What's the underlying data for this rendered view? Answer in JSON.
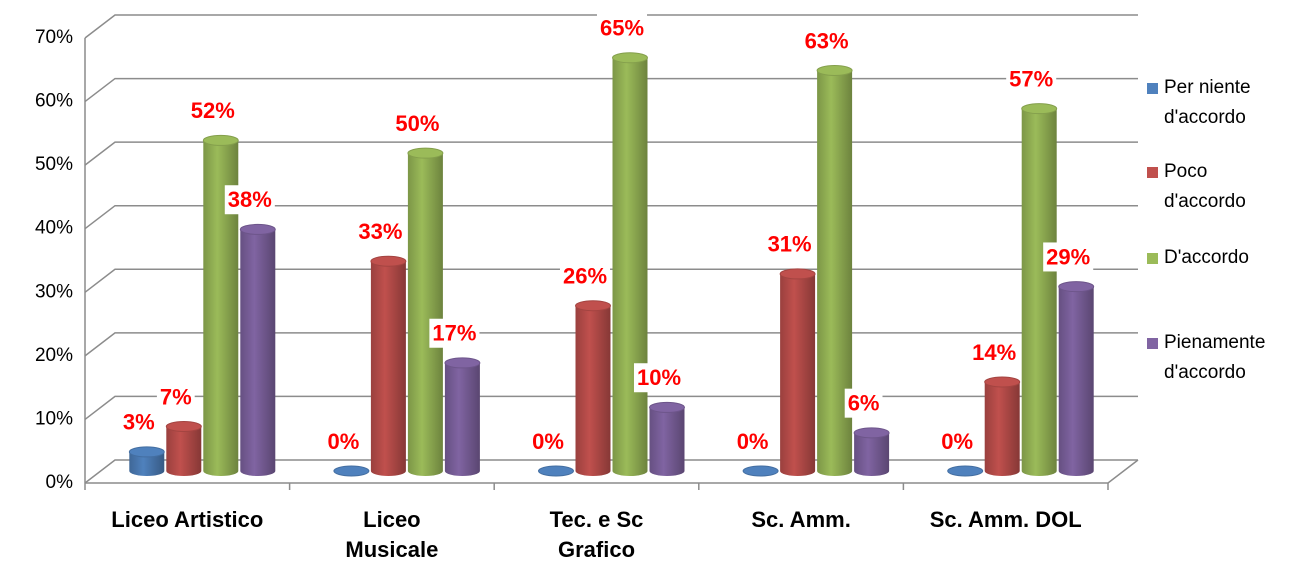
{
  "chart_data": {
    "type": "bar",
    "categories": [
      "Liceo Artistico",
      "Liceo\nMusicale",
      "Tec.  e Sc\nGrafico",
      "Sc. Amm.",
      "Sc. Amm. DOL"
    ],
    "series": [
      {
        "name": "Per niente\nd'accordo",
        "color": "#4f81bd",
        "values": [
          3,
          0,
          0,
          0,
          0
        ],
        "value_labels": [
          "3%",
          "0%",
          "0%",
          "0%",
          "0%"
        ]
      },
      {
        "name": "Poco\nd'accordo",
        "color": "#c0504d",
        "values": [
          7,
          33,
          26,
          31,
          14
        ],
        "value_labels": [
          "7%",
          "33%",
          "26%",
          "31%",
          "14%"
        ]
      },
      {
        "name": "D'accordo",
        "color": "#9bbb59",
        "values": [
          52,
          50,
          65,
          63,
          57
        ],
        "value_labels": [
          "52%",
          "50%",
          "65%",
          "63%",
          "57%"
        ]
      },
      {
        "name": "Pienamente\nd'accordo",
        "color": "#8064a2",
        "values": [
          38,
          17,
          10,
          6,
          29
        ],
        "value_labels": [
          "38%",
          "17%",
          "10%",
          "6%",
          "29%"
        ]
      }
    ],
    "ylim": [
      0,
      70
    ],
    "yticks": [
      {
        "value": 0,
        "label": "0%"
      },
      {
        "value": 10,
        "label": "10%"
      },
      {
        "value": 20,
        "label": "20%"
      },
      {
        "value": 30,
        "label": "30%"
      },
      {
        "value": 40,
        "label": "40%"
      },
      {
        "value": 50,
        "label": "50%"
      },
      {
        "value": 60,
        "label": "60%"
      },
      {
        "value": 70,
        "label": "70%"
      }
    ],
    "grid": true,
    "legend": "right"
  }
}
